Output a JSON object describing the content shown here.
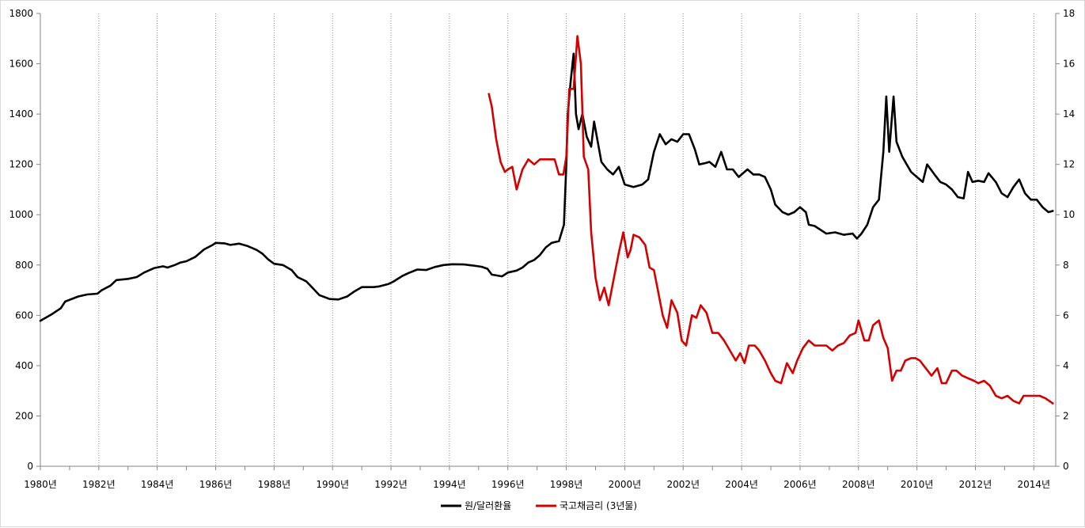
{
  "chart_data": {
    "type": "line",
    "title": "",
    "xlabel": "",
    "ylabel": "",
    "x_range": [
      1980,
      2014.75
    ],
    "x_ticks": [
      "1980년",
      "1982년",
      "1984년",
      "1986년",
      "1988년",
      "1990년",
      "1992년",
      "1994년",
      "1996년",
      "1998년",
      "2000년",
      "2002년",
      "2004년",
      "2006년",
      "2008년",
      "2010년",
      "2012년",
      "2014년"
    ],
    "y_left": {
      "min": 0,
      "max": 1800,
      "ticks": [
        "0",
        "200",
        "400",
        "600",
        "800",
        "1000",
        "1200",
        "1400",
        "1600",
        "1800"
      ]
    },
    "y_right": {
      "min": 0,
      "max": 18,
      "ticks": [
        "0",
        "2",
        "4",
        "6",
        "8",
        "10",
        "12",
        "14",
        "16",
        "18"
      ]
    },
    "grid": "vertical-dotted",
    "legend_position": "bottom-center",
    "series": [
      {
        "name": "원/달러환율",
        "axis": "left",
        "color": "#000000",
        "points": [
          [
            1980.0,
            578
          ],
          [
            1980.4,
            605
          ],
          [
            1980.7,
            628
          ],
          [
            1980.85,
            655
          ],
          [
            1981.3,
            675
          ],
          [
            1981.6,
            683
          ],
          [
            1981.95,
            686
          ],
          [
            1982.1,
            700
          ],
          [
            1982.4,
            718
          ],
          [
            1982.6,
            740
          ],
          [
            1983.0,
            745
          ],
          [
            1983.3,
            752
          ],
          [
            1983.55,
            770
          ],
          [
            1983.9,
            788
          ],
          [
            1984.2,
            795
          ],
          [
            1984.35,
            790
          ],
          [
            1984.6,
            800
          ],
          [
            1984.8,
            810
          ],
          [
            1985.0,
            815
          ],
          [
            1985.3,
            832
          ],
          [
            1985.6,
            862
          ],
          [
            1985.9,
            880
          ],
          [
            1986.0,
            888
          ],
          [
            1986.3,
            886
          ],
          [
            1986.5,
            880
          ],
          [
            1986.8,
            885
          ],
          [
            1987.1,
            875
          ],
          [
            1987.4,
            860
          ],
          [
            1987.6,
            845
          ],
          [
            1987.8,
            822
          ],
          [
            1988.0,
            805
          ],
          [
            1988.3,
            800
          ],
          [
            1988.6,
            780
          ],
          [
            1988.8,
            752
          ],
          [
            1989.1,
            735
          ],
          [
            1989.35,
            705
          ],
          [
            1989.55,
            680
          ],
          [
            1989.9,
            665
          ],
          [
            1990.2,
            663
          ],
          [
            1990.5,
            675
          ],
          [
            1990.75,
            695
          ],
          [
            1991.0,
            712
          ],
          [
            1991.4,
            712
          ],
          [
            1991.6,
            715
          ],
          [
            1991.9,
            724
          ],
          [
            1992.1,
            735
          ],
          [
            1992.4,
            757
          ],
          [
            1992.6,
            768
          ],
          [
            1992.9,
            782
          ],
          [
            1993.2,
            780
          ],
          [
            1993.5,
            792
          ],
          [
            1993.8,
            800
          ],
          [
            1994.1,
            803
          ],
          [
            1994.5,
            802
          ],
          [
            1994.8,
            798
          ],
          [
            1995.1,
            793
          ],
          [
            1995.3,
            785
          ],
          [
            1995.45,
            762
          ],
          [
            1995.8,
            755
          ],
          [
            1996.0,
            770
          ],
          [
            1996.3,
            778
          ],
          [
            1996.5,
            790
          ],
          [
            1996.7,
            810
          ],
          [
            1996.9,
            820
          ],
          [
            1997.1,
            840
          ],
          [
            1997.3,
            870
          ],
          [
            1997.5,
            888
          ],
          [
            1997.75,
            895
          ],
          [
            1997.92,
            960
          ],
          [
            1998.0,
            1200
          ],
          [
            1998.05,
            1400
          ],
          [
            1998.15,
            1530
          ],
          [
            1998.25,
            1640
          ],
          [
            1998.33,
            1400
          ],
          [
            1998.42,
            1340
          ],
          [
            1998.55,
            1400
          ],
          [
            1998.7,
            1310
          ],
          [
            1998.85,
            1270
          ],
          [
            1998.95,
            1370
          ],
          [
            1999.2,
            1210
          ],
          [
            1999.4,
            1180
          ],
          [
            1999.6,
            1160
          ],
          [
            1999.8,
            1190
          ],
          [
            2000.0,
            1120
          ],
          [
            2000.3,
            1110
          ],
          [
            2000.6,
            1120
          ],
          [
            2000.8,
            1140
          ],
          [
            2001.0,
            1250
          ],
          [
            2001.2,
            1320
          ],
          [
            2001.4,
            1280
          ],
          [
            2001.6,
            1300
          ],
          [
            2001.8,
            1290
          ],
          [
            2002.0,
            1320
          ],
          [
            2002.2,
            1320
          ],
          [
            2002.4,
            1260
          ],
          [
            2002.55,
            1200
          ],
          [
            2002.75,
            1205
          ],
          [
            2002.9,
            1210
          ],
          [
            2003.1,
            1190
          ],
          [
            2003.3,
            1250
          ],
          [
            2003.5,
            1180
          ],
          [
            2003.7,
            1180
          ],
          [
            2003.9,
            1150
          ],
          [
            2004.0,
            1160
          ],
          [
            2004.2,
            1180
          ],
          [
            2004.4,
            1160
          ],
          [
            2004.6,
            1160
          ],
          [
            2004.8,
            1150
          ],
          [
            2005.0,
            1100
          ],
          [
            2005.15,
            1040
          ],
          [
            2005.4,
            1010
          ],
          [
            2005.6,
            1000
          ],
          [
            2005.8,
            1010
          ],
          [
            2006.0,
            1030
          ],
          [
            2006.2,
            1010
          ],
          [
            2006.3,
            960
          ],
          [
            2006.5,
            955
          ],
          [
            2006.7,
            940
          ],
          [
            2006.9,
            925
          ],
          [
            2007.2,
            930
          ],
          [
            2007.5,
            920
          ],
          [
            2007.8,
            925
          ],
          [
            2007.95,
            905
          ],
          [
            2008.1,
            925
          ],
          [
            2008.3,
            960
          ],
          [
            2008.5,
            1030
          ],
          [
            2008.7,
            1060
          ],
          [
            2008.85,
            1250
          ],
          [
            2008.95,
            1470
          ],
          [
            2009.05,
            1250
          ],
          [
            2009.2,
            1470
          ],
          [
            2009.3,
            1290
          ],
          [
            2009.5,
            1230
          ],
          [
            2009.8,
            1170
          ],
          [
            2010.0,
            1150
          ],
          [
            2010.2,
            1130
          ],
          [
            2010.35,
            1200
          ],
          [
            2010.6,
            1160
          ],
          [
            2010.8,
            1130
          ],
          [
            2011.0,
            1120
          ],
          [
            2011.2,
            1100
          ],
          [
            2011.4,
            1070
          ],
          [
            2011.6,
            1065
          ],
          [
            2011.75,
            1170
          ],
          [
            2011.9,
            1130
          ],
          [
            2012.1,
            1135
          ],
          [
            2012.3,
            1130
          ],
          [
            2012.45,
            1165
          ],
          [
            2012.7,
            1130
          ],
          [
            2012.9,
            1085
          ],
          [
            2013.1,
            1070
          ],
          [
            2013.3,
            1110
          ],
          [
            2013.5,
            1140
          ],
          [
            2013.7,
            1085
          ],
          [
            2013.9,
            1060
          ],
          [
            2014.1,
            1060
          ],
          [
            2014.3,
            1030
          ],
          [
            2014.5,
            1010
          ],
          [
            2014.65,
            1015
          ]
        ]
      },
      {
        "name": "국고채금리 (3년물)",
        "axis": "right",
        "color": "#d40000",
        "points": [
          [
            1995.35,
            14.8
          ],
          [
            1995.45,
            14.3
          ],
          [
            1995.6,
            13.0
          ],
          [
            1995.75,
            12.1
          ],
          [
            1995.9,
            11.7
          ],
          [
            1996.0,
            11.8
          ],
          [
            1996.15,
            11.9
          ],
          [
            1996.3,
            11.0
          ],
          [
            1996.5,
            11.8
          ],
          [
            1996.7,
            12.2
          ],
          [
            1996.9,
            12.0
          ],
          [
            1997.1,
            12.2
          ],
          [
            1997.4,
            12.2
          ],
          [
            1997.6,
            12.2
          ],
          [
            1997.75,
            11.6
          ],
          [
            1997.9,
            11.6
          ],
          [
            1998.0,
            12.3
          ],
          [
            1998.1,
            15.0
          ],
          [
            1998.25,
            15.0
          ],
          [
            1998.38,
            17.1
          ],
          [
            1998.5,
            16.0
          ],
          [
            1998.6,
            12.3
          ],
          [
            1998.75,
            11.8
          ],
          [
            1998.85,
            9.3
          ],
          [
            1999.0,
            7.5
          ],
          [
            1999.15,
            6.6
          ],
          [
            1999.3,
            7.1
          ],
          [
            1999.45,
            6.4
          ],
          [
            1999.6,
            7.3
          ],
          [
            1999.8,
            8.5
          ],
          [
            1999.95,
            9.3
          ],
          [
            2000.1,
            8.3
          ],
          [
            2000.2,
            8.6
          ],
          [
            2000.3,
            9.2
          ],
          [
            2000.5,
            9.1
          ],
          [
            2000.7,
            8.8
          ],
          [
            2000.85,
            7.9
          ],
          [
            2001.0,
            7.8
          ],
          [
            2001.15,
            6.9
          ],
          [
            2001.3,
            6.0
          ],
          [
            2001.45,
            5.5
          ],
          [
            2001.6,
            6.6
          ],
          [
            2001.8,
            6.1
          ],
          [
            2001.95,
            5.0
          ],
          [
            2002.1,
            4.8
          ],
          [
            2002.3,
            6.0
          ],
          [
            2002.45,
            5.9
          ],
          [
            2002.6,
            6.4
          ],
          [
            2002.8,
            6.1
          ],
          [
            2003.0,
            5.3
          ],
          [
            2003.2,
            5.3
          ],
          [
            2003.4,
            5.0
          ],
          [
            2003.55,
            4.7
          ],
          [
            2003.8,
            4.2
          ],
          [
            2003.95,
            4.5
          ],
          [
            2004.1,
            4.1
          ],
          [
            2004.25,
            4.8
          ],
          [
            2004.45,
            4.8
          ],
          [
            2004.6,
            4.6
          ],
          [
            2004.8,
            4.2
          ],
          [
            2005.0,
            3.7
          ],
          [
            2005.15,
            3.4
          ],
          [
            2005.35,
            3.3
          ],
          [
            2005.55,
            4.1
          ],
          [
            2005.75,
            3.7
          ],
          [
            2005.9,
            4.2
          ],
          [
            2006.1,
            4.7
          ],
          [
            2006.3,
            5.0
          ],
          [
            2006.5,
            4.8
          ],
          [
            2006.7,
            4.8
          ],
          [
            2006.9,
            4.8
          ],
          [
            2007.1,
            4.6
          ],
          [
            2007.3,
            4.8
          ],
          [
            2007.5,
            4.9
          ],
          [
            2007.7,
            5.2
          ],
          [
            2007.9,
            5.3
          ],
          [
            2008.0,
            5.8
          ],
          [
            2008.2,
            5.0
          ],
          [
            2008.35,
            5.0
          ],
          [
            2008.5,
            5.6
          ],
          [
            2008.7,
            5.8
          ],
          [
            2008.85,
            5.1
          ],
          [
            2009.0,
            4.7
          ],
          [
            2009.15,
            3.4
          ],
          [
            2009.3,
            3.8
          ],
          [
            2009.45,
            3.8
          ],
          [
            2009.6,
            4.2
          ],
          [
            2009.8,
            4.3
          ],
          [
            2009.95,
            4.3
          ],
          [
            2010.1,
            4.2
          ],
          [
            2010.3,
            3.9
          ],
          [
            2010.5,
            3.6
          ],
          [
            2010.7,
            3.9
          ],
          [
            2010.85,
            3.3
          ],
          [
            2011.0,
            3.3
          ],
          [
            2011.2,
            3.8
          ],
          [
            2011.35,
            3.8
          ],
          [
            2011.55,
            3.6
          ],
          [
            2011.75,
            3.5
          ],
          [
            2011.95,
            3.4
          ],
          [
            2012.1,
            3.3
          ],
          [
            2012.3,
            3.4
          ],
          [
            2012.5,
            3.2
          ],
          [
            2012.7,
            2.8
          ],
          [
            2012.9,
            2.7
          ],
          [
            2013.1,
            2.8
          ],
          [
            2013.3,
            2.6
          ],
          [
            2013.5,
            2.5
          ],
          [
            2013.65,
            2.8
          ],
          [
            2013.85,
            2.8
          ],
          [
            2014.0,
            2.8
          ],
          [
            2014.2,
            2.8
          ],
          [
            2014.4,
            2.7
          ],
          [
            2014.65,
            2.5
          ]
        ]
      }
    ]
  }
}
